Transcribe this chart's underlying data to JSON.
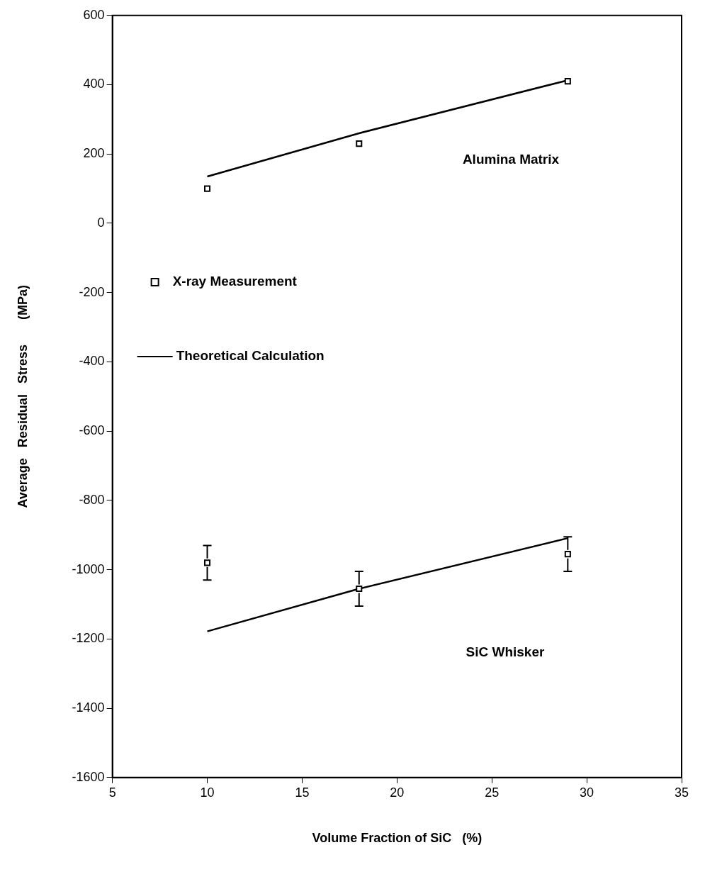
{
  "chart_data": {
    "type": "scatter",
    "xlabel": "Volume Fraction of SiC   (%)",
    "ylabel": "Average   Residual   Stress       (MPa)",
    "xlim": [
      5,
      35
    ],
    "xticks": [
      5,
      10,
      15,
      20,
      25,
      30,
      35
    ],
    "ylim": [
      -1600,
      600
    ],
    "yticks": [
      -1600,
      -1400,
      -1200,
      -1000,
      -800,
      -600,
      -400,
      -200,
      0,
      200,
      400,
      600
    ],
    "grid": false,
    "legend": "left",
    "series": [
      {
        "name": "X-ray Measurement",
        "color": "#000000",
        "marker": "square",
        "x": [
          10,
          18,
          29,
          10,
          18,
          29
        ],
        "values": [
          100,
          230,
          410,
          -980,
          -1055,
          -955
        ],
        "errors": [
          null,
          null,
          null,
          50,
          50,
          50
        ]
      },
      {
        "name": "Theoretical Calculation",
        "type": "line",
        "color": "#000000",
        "x": [
          10,
          18,
          29
        ],
        "values": [
          135,
          260,
          413
        ],
        "line_style": "solid"
      },
      {
        "type": "line",
        "color": "#000000",
        "x": [
          10,
          18,
          29
        ],
        "values": [
          -1178,
          -1055,
          -909
        ],
        "line_style": "solid"
      }
    ],
    "annotations": [
      "Alumina Matrix",
      "SiC Whisker"
    ]
  }
}
